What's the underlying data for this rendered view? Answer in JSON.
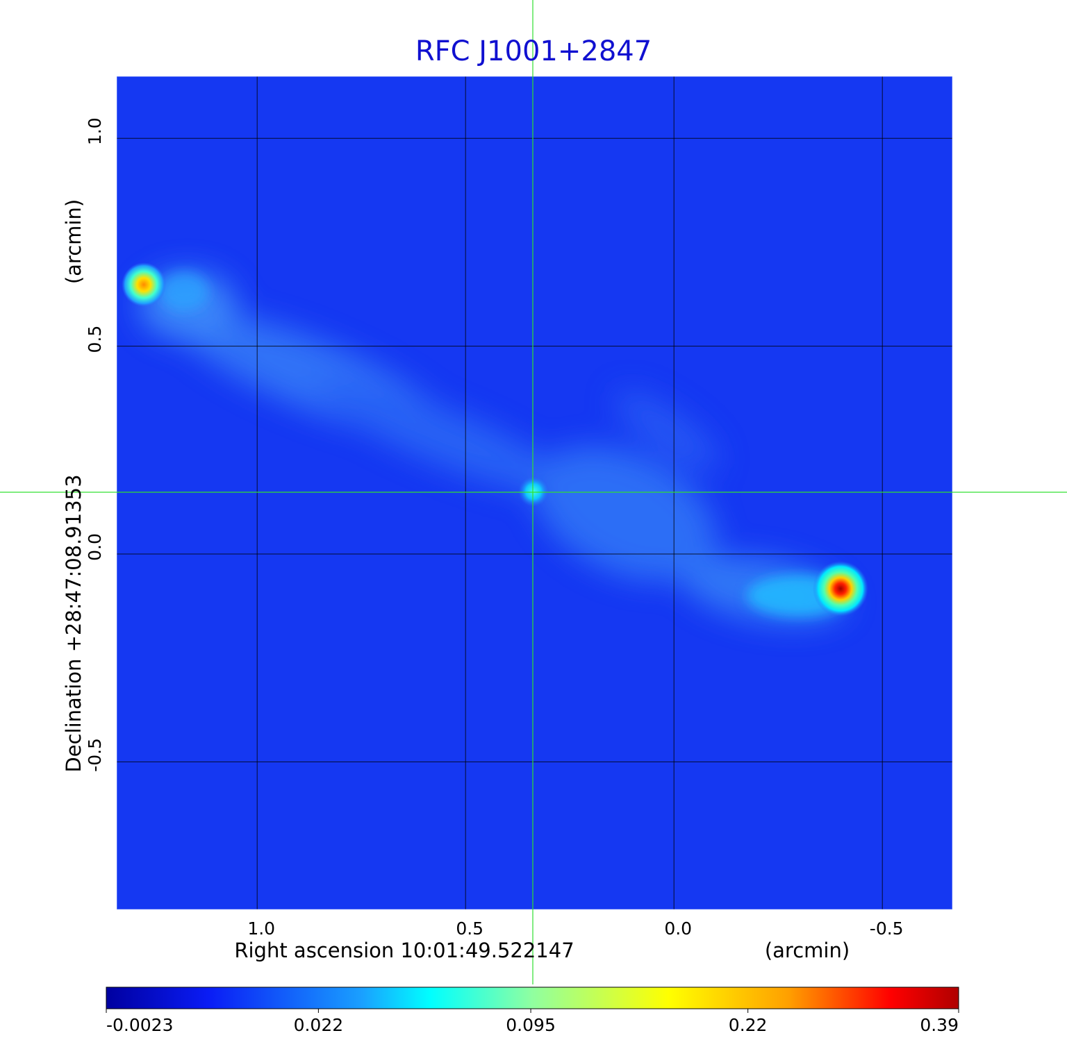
{
  "chart_data": {
    "type": "image",
    "title": "RFC J1001+2847",
    "xlabel": "Right ascension  10:01:49.522147",
    "xunit": "(arcmin)",
    "ylabel": "Declination  +28:47:08.91353",
    "yunit": "(arcmin)",
    "xlim": [
      1.337,
      -0.668
    ],
    "ylim": [
      -0.855,
      1.149
    ],
    "xticks": [
      {
        "value": 1,
        "label": "1.0"
      },
      0.5,
      {
        "value": 0,
        "label": "0.0"
      },
      -0.5
    ],
    "yticks": [
      {
        "value": 1,
        "label": "1.0"
      },
      0.5,
      {
        "value": 0,
        "label": "0.0"
      },
      -0.5
    ],
    "grid": true,
    "colorbar_range": [
      -0.0023,
      0.39
    ],
    "colorbar_scale": "sqrt",
    "colorbar_ticks": [
      -0.0023,
      0.022,
      0.095,
      0.22,
      0.39
    ]
  }
}
